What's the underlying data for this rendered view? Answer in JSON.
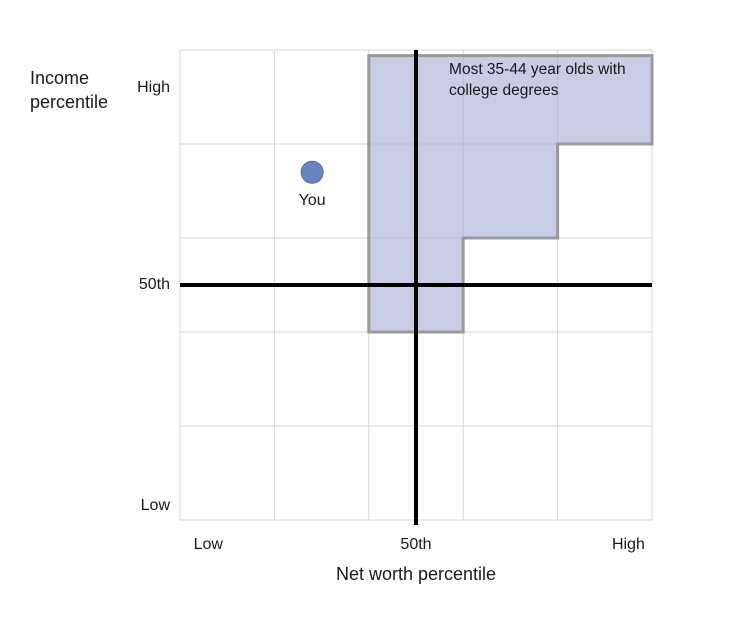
{
  "chart_data": {
    "type": "area",
    "title": "",
    "xlabel": "Net worth percentile",
    "ylabel": "Income percentile",
    "xlim": [
      0,
      100
    ],
    "ylim": [
      0,
      100
    ],
    "grid": {
      "on": true,
      "cols": 5,
      "rows": 5
    },
    "x_axis": {
      "ticks": [
        {
          "label": "Low",
          "pos": 6
        },
        {
          "label": "50th",
          "pos": 50
        },
        {
          "label": "High",
          "pos": 95
        }
      ]
    },
    "y_axis": {
      "ticks": [
        {
          "label": "High",
          "pos": 92
        },
        {
          "label": "50th",
          "pos": 50
        },
        {
          "label": "Low",
          "pos": 3
        }
      ]
    },
    "median_lines": {
      "net_worth_pct": 50,
      "income_pct": 50
    },
    "you_point": {
      "label": "You",
      "x": 28,
      "y": 74
    },
    "region": {
      "label": "Most 35-44 year olds with college degrees",
      "label_pos": {
        "x": 57,
        "y_from_top": 2
      },
      "points": [
        [
          40,
          98.8
        ],
        [
          100,
          98.8
        ],
        [
          100,
          80
        ],
        [
          80,
          80
        ],
        [
          80,
          60
        ],
        [
          60,
          60
        ],
        [
          60,
          40
        ],
        [
          40,
          40
        ]
      ]
    },
    "colors": {
      "background": "#ffffff",
      "grid": "#d6d6d6",
      "region_fill": "#a2abd4",
      "region_fill_opacity": 0.6,
      "region_border": "#9b9b9b",
      "median_line": "#000000",
      "you_dot": "#6786c0",
      "you_dot_border": "#53699f",
      "text": "#1a1a1a"
    }
  }
}
